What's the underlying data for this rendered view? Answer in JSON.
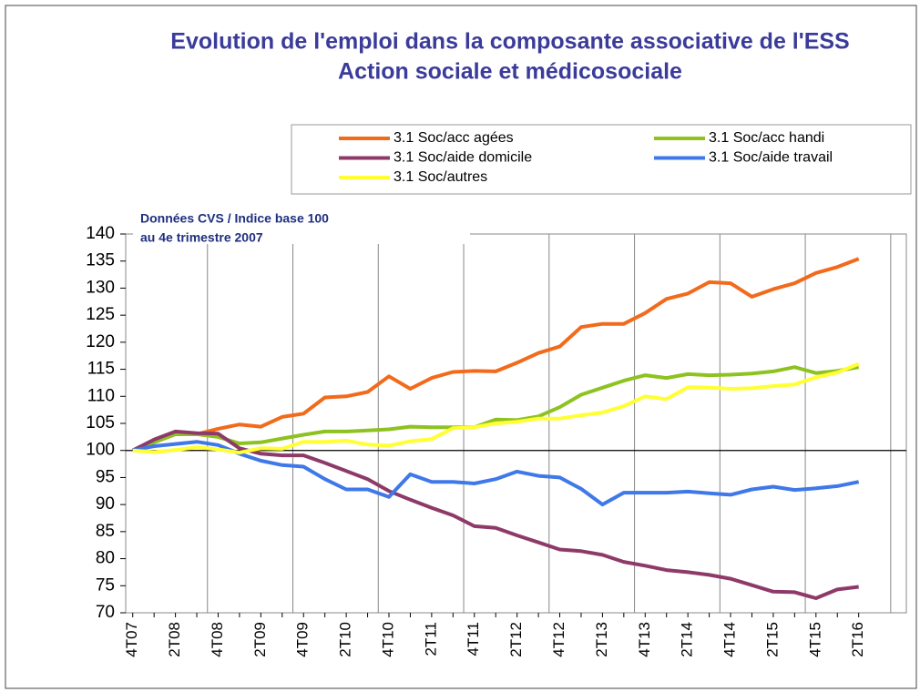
{
  "chart_data": {
    "type": "line",
    "title": "Evolution de l'emploi dans la composante associative de l'ESS",
    "subtitle": "Action sociale et médicosociale",
    "annotation": [
      "Données CVS / Indice base 100",
      "au 4e trimestre 2007"
    ],
    "categories": [
      "4T07",
      null,
      "2T08",
      null,
      "4T08",
      null,
      "2T09",
      null,
      "4T09",
      null,
      "2T10",
      null,
      "4T10",
      null,
      "2T11",
      null,
      "4T11",
      null,
      "2T12",
      null,
      "4T12",
      null,
      "2T13",
      null,
      "4T13",
      null,
      "2T14",
      null,
      "4T14",
      null,
      "2T15",
      null,
      "4T15",
      null,
      "2T16"
    ],
    "ylim": [
      70,
      140
    ],
    "yticks": [
      70,
      75,
      80,
      85,
      90,
      95,
      100,
      105,
      110,
      115,
      120,
      125,
      130,
      135,
      140
    ],
    "grid": false,
    "series": [
      {
        "name": "3.1 Soc/acc agées",
        "color": "#f26a1b",
        "values": [
          100,
          101.5,
          103,
          103,
          104,
          104.8,
          104.4,
          106.2,
          106.8,
          109.8,
          110,
          110.8,
          113.7,
          111.4,
          113.4,
          114.5,
          114.7,
          114.6,
          116.2,
          118,
          119.2,
          122.8,
          123.4,
          123.4,
          125.4,
          128,
          129,
          131.1,
          130.9,
          128.4,
          129.8,
          130.9,
          132.8,
          133.9,
          135.4
        ]
      },
      {
        "name": "3.1 Soc/acc handi",
        "color": "#8dc21f",
        "values": [
          100,
          101.5,
          103,
          103,
          102.5,
          101.3,
          101.5,
          102.2,
          102.9,
          103.5,
          103.5,
          103.7,
          103.9,
          104.4,
          104.3,
          104.3,
          104.3,
          105.7,
          105.6,
          106.3,
          108,
          110.3,
          111.6,
          112.9,
          113.9,
          113.4,
          114.1,
          113.9,
          114,
          114.2,
          114.6,
          115.4,
          114.3,
          114.7,
          115.4
        ]
      },
      {
        "name": "3.1 Soc/aide domicile",
        "color": "#8e3a68",
        "values": [
          100,
          102,
          103.5,
          103.2,
          103.1,
          100.4,
          99.4,
          99.1,
          99.1,
          97.7,
          96.2,
          94.7,
          92.5,
          90.9,
          89.4,
          88,
          86,
          85.7,
          84.3,
          83,
          81.7,
          81.4,
          80.7,
          79.4,
          78.7,
          77.9,
          77.5,
          77,
          76.3,
          75.1,
          73.9,
          73.8,
          72.7,
          74.3,
          74.8
        ]
      },
      {
        "name": "3.1 Soc/aide travail",
        "color": "#3f78e8",
        "values": [
          100,
          100.8,
          101.2,
          101.6,
          101,
          99.4,
          98.1,
          97.3,
          97,
          94.7,
          92.8,
          92.8,
          91.4,
          95.6,
          94.2,
          94.2,
          93.9,
          94.7,
          96.1,
          95.3,
          95,
          92.9,
          90,
          92.2,
          92.2,
          92.2,
          92.4,
          92.1,
          91.8,
          92.8,
          93.3,
          92.7,
          93,
          93.4,
          94.2
        ]
      },
      {
        "name": "3.1 Soc/autres",
        "color": "#ffff33",
        "values": [
          100,
          99.7,
          100.1,
          100.6,
          100.2,
          99.6,
          100.4,
          100.3,
          101.6,
          101.6,
          101.8,
          101.1,
          100.9,
          101.7,
          102.1,
          104.1,
          104.3,
          105,
          105.3,
          105.9,
          105.9,
          106.5,
          107,
          108.2,
          110,
          109.5,
          111.7,
          111.6,
          111.4,
          111.5,
          111.9,
          112.2,
          113.5,
          114.4,
          116
        ]
      }
    ]
  }
}
